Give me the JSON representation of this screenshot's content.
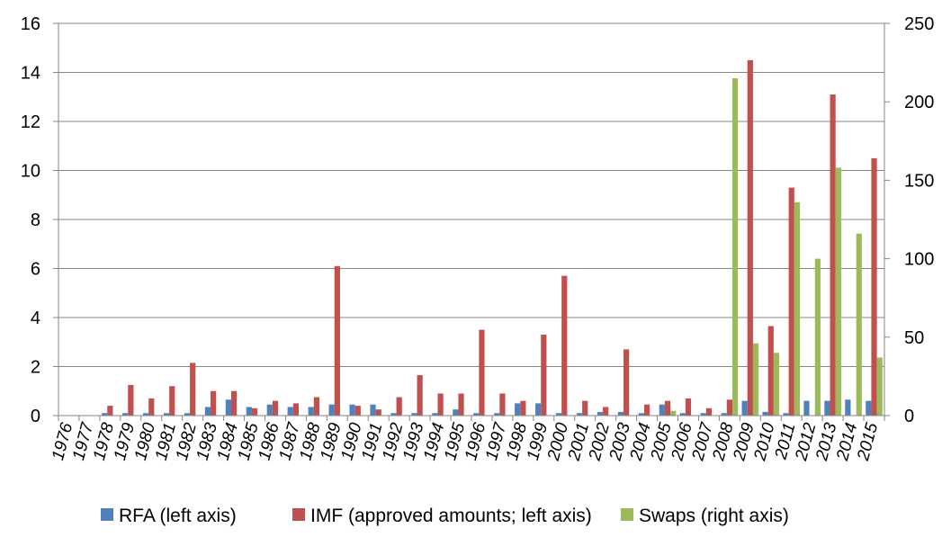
{
  "chart_data": {
    "type": "bar",
    "title": "",
    "xlabel": "",
    "ylabel": "",
    "categories": [
      "1976",
      "1977",
      "1978",
      "1979",
      "1980",
      "1981",
      "1982",
      "1983",
      "1984",
      "1985",
      "1986",
      "1987",
      "1988",
      "1989",
      "1990",
      "1991",
      "1992",
      "1993",
      "1994",
      "1995",
      "1996",
      "1997",
      "1998",
      "1999",
      "2000",
      "2001",
      "2002",
      "2003",
      "2004",
      "2005",
      "2006",
      "2007",
      "2008",
      "2009",
      "2010",
      "2011",
      "2012",
      "2013",
      "2014",
      "2015"
    ],
    "left_axis": {
      "ylim": [
        0,
        16
      ],
      "ticks": [
        0,
        2,
        4,
        6,
        8,
        10,
        12,
        14,
        16
      ]
    },
    "right_axis": {
      "ylim": [
        0,
        250
      ],
      "ticks": [
        0,
        50,
        100,
        150,
        200,
        250
      ]
    },
    "grid": "horizontal",
    "legend_position": "bottom",
    "series": [
      {
        "name": "RFA (left axis)",
        "axis": "left",
        "color": "#4F81BD",
        "values": [
          0,
          0,
          0.1,
          0.1,
          0.1,
          0.1,
          0.1,
          0.35,
          0.65,
          0.35,
          0.45,
          0.35,
          0.35,
          0.45,
          0.45,
          0.45,
          0.1,
          0.1,
          0.1,
          0.25,
          0.1,
          0.1,
          0.5,
          0.5,
          0.1,
          0.1,
          0.15,
          0.15,
          0.1,
          0.45,
          0.1,
          0.1,
          0.1,
          0.6,
          0.15,
          0.1,
          0.6,
          0.6,
          0.65,
          0.6
        ]
      },
      {
        "name": "IMF (approved amounts; left axis)",
        "axis": "left",
        "color": "#C0504D",
        "values": [
          0,
          0,
          0.4,
          1.25,
          0.7,
          1.2,
          2.15,
          1.0,
          1.0,
          0.3,
          0.6,
          0.5,
          0.75,
          6.1,
          0.4,
          0.25,
          0.75,
          1.65,
          0.9,
          0.9,
          3.5,
          0.9,
          0.6,
          3.3,
          5.7,
          0.6,
          0.35,
          2.7,
          0.45,
          0.6,
          0.7,
          0.3,
          0.65,
          14.5,
          3.65,
          9.3,
          0,
          13.1,
          0,
          10.5
        ]
      },
      {
        "name": "Swaps (right axis)",
        "axis": "right",
        "color": "#9BBB59",
        "values": [
          0,
          0,
          0,
          0,
          0,
          0,
          0,
          0,
          0,
          0,
          0,
          0,
          0,
          0,
          0,
          0,
          0,
          0,
          0,
          0,
          0,
          0,
          0,
          0,
          0,
          0,
          0,
          0,
          0,
          3,
          0,
          0,
          215,
          46,
          40,
          136,
          100,
          158,
          116,
          37
        ]
      }
    ]
  }
}
